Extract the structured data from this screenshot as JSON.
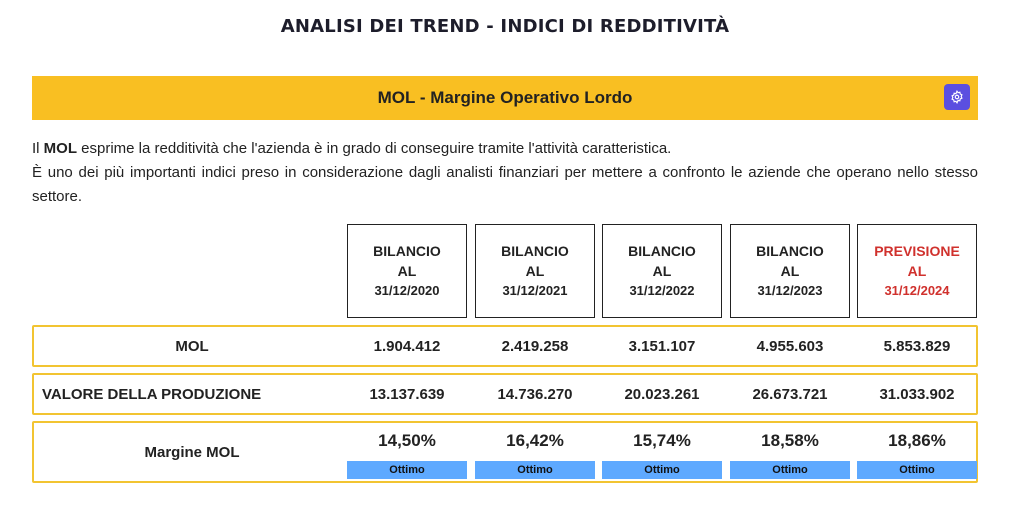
{
  "page": {
    "title": "ANALISI DEI TREND - INDICI DI REDDITIVITÀ"
  },
  "banner": {
    "title": "MOL - Margine Operativo Lordo",
    "settings_icon": "gear-icon",
    "accent": "#f9bf22",
    "button_color": "#5b4fe0"
  },
  "description": {
    "line1_prefix": "Il ",
    "line1_bold": "MOL",
    "line1_suffix": " esprime la redditività che l'azienda è in grado di conseguire tramite l'attività caratteristica.",
    "line2": "È uno dei più importanti indici preso in considerazione dagli analisti finanziari per mettere a confronto le aziende che operano nello stesso settore."
  },
  "headers": [
    {
      "l1": "BILANCIO",
      "l2": "AL",
      "l3": "31/12/2020",
      "forecast": false
    },
    {
      "l1": "BILANCIO",
      "l2": "AL",
      "l3": "31/12/2021",
      "forecast": false
    },
    {
      "l1": "BILANCIO",
      "l2": "AL",
      "l3": "31/12/2022",
      "forecast": false
    },
    {
      "l1": "BILANCIO",
      "l2": "AL",
      "l3": "31/12/2023",
      "forecast": false
    },
    {
      "l1": "PREVISIONE",
      "l2": "AL",
      "l3": "31/12/2024",
      "forecast": true
    }
  ],
  "rows": {
    "mol": {
      "label": "MOL",
      "values": [
        "1.904.412",
        "2.419.258",
        "3.151.107",
        "4.955.603",
        "5.853.829"
      ]
    },
    "produzione": {
      "label": "VALORE DELLA PRODUZIONE",
      "values": [
        "13.137.639",
        "14.736.270",
        "20.023.261",
        "26.673.721",
        "31.033.902"
      ]
    },
    "margine": {
      "label": "Margine MOL",
      "values": [
        "14,50%",
        "16,42%",
        "15,74%",
        "18,58%",
        "18,86%"
      ],
      "ratings": [
        "Ottimo",
        "Ottimo",
        "Ottimo",
        "Ottimo",
        "Ottimo"
      ]
    }
  },
  "colors": {
    "forecast_text": "#d0312d",
    "row_border": "#f2c431",
    "badge": "#5ea9ff"
  }
}
